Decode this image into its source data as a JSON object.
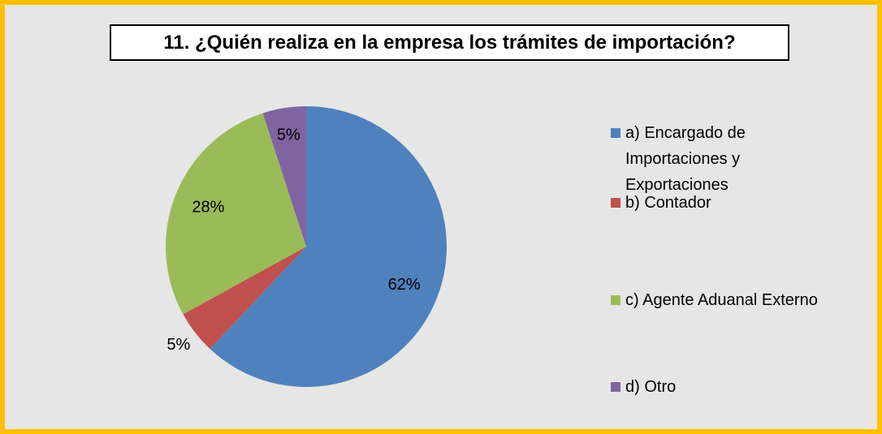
{
  "chart_data": {
    "type": "pie",
    "title": "11. ¿Quién realiza en la empresa los trámites de importación?",
    "categories": [
      "a) Encargado de Importaciones y Exportaciones",
      "b) Contador",
      "c) Agente Aduanal Externo",
      "d) Otro"
    ],
    "values": [
      62,
      5,
      28,
      5
    ],
    "value_labels": [
      "62%",
      "5%",
      "28%",
      "5%"
    ],
    "colors": [
      "#4f81bd",
      "#c0504d",
      "#9bbb59",
      "#8064a2"
    ],
    "legend": "right"
  }
}
